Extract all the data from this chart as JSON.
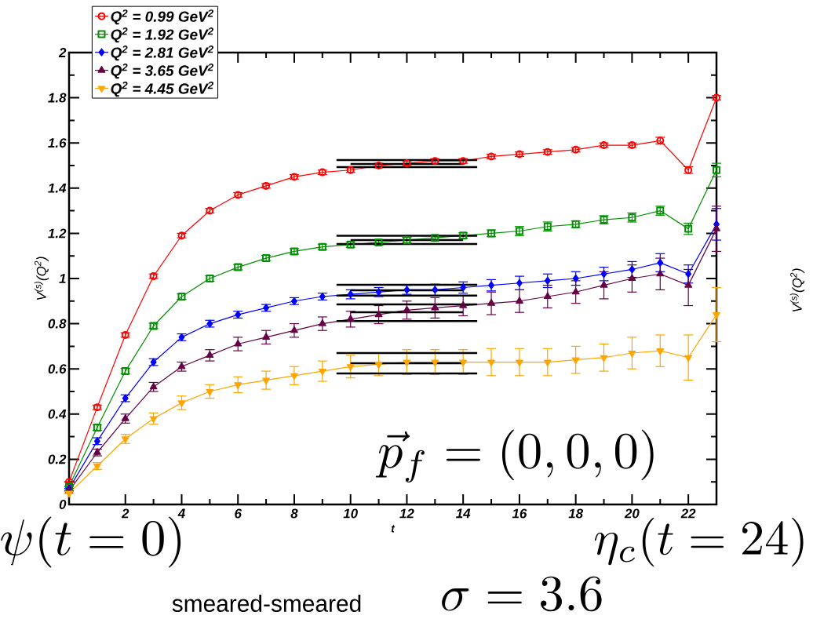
{
  "chart_data": {
    "type": "line",
    "xlabel": "t",
    "ylabel": "V$^{(s)}$(Q$^{2}$)",
    "xlim": [
      0,
      23
    ],
    "ylim": [
      0,
      2
    ],
    "xticks": [
      2,
      4,
      6,
      8,
      10,
      12,
      14,
      16,
      18,
      20,
      22
    ],
    "yticks": [
      0,
      0.2,
      0.4,
      0.6,
      0.8,
      1,
      1.2,
      1.4,
      1.6,
      1.8,
      2
    ],
    "legend": "top left",
    "x": [
      0,
      1,
      2,
      3,
      4,
      5,
      6,
      7,
      8,
      9,
      10,
      11,
      12,
      13,
      14,
      15,
      16,
      17,
      18,
      19,
      20,
      21,
      22,
      23
    ],
    "series": [
      {
        "name": "Q$^{2}$ = 0.99 GeV$^{2}$",
        "color": "#ff0000",
        "marker": "circle",
        "values": [
          0.1,
          0.43,
          0.75,
          1.01,
          1.19,
          1.3,
          1.37,
          1.41,
          1.45,
          1.47,
          1.48,
          1.5,
          1.51,
          1.52,
          1.52,
          1.54,
          1.55,
          1.56,
          1.57,
          1.59,
          1.59,
          1.61,
          1.48,
          1.8
        ],
        "errors": [
          null,
          0.01,
          0.01,
          0.01,
          0.01,
          0.01,
          0.01,
          0.01,
          0.01,
          0.01,
          0.01,
          0.01,
          0.01,
          0.01,
          0.01,
          0.01,
          0.01,
          0.01,
          0.01,
          0.01,
          0.01,
          0.015,
          0.015,
          0.01
        ]
      },
      {
        "name": "Q$^{2}$ = 1.92 GeV$^{2}$",
        "color": "#009000",
        "marker": "square",
        "values": [
          0.08,
          0.34,
          0.59,
          0.79,
          0.92,
          1.0,
          1.05,
          1.09,
          1.12,
          1.14,
          1.15,
          1.16,
          1.17,
          1.18,
          1.19,
          1.2,
          1.21,
          1.23,
          1.24,
          1.26,
          1.27,
          1.3,
          1.22,
          1.48
        ],
        "errors": [
          null,
          0.012,
          0.012,
          0.012,
          0.012,
          0.012,
          0.012,
          0.012,
          0.012,
          0.012,
          0.012,
          0.012,
          0.012,
          0.012,
          0.012,
          0.015,
          0.02,
          0.02,
          0.015,
          0.018,
          0.02,
          0.02,
          0.025,
          0.03
        ]
      },
      {
        "name": "Q$^{2}$ = 2.81 GeV$^{2}$",
        "color": "#0000ff",
        "marker": "diamond",
        "values": [
          0.07,
          0.28,
          0.47,
          0.63,
          0.74,
          0.8,
          0.84,
          0.87,
          0.9,
          0.92,
          0.93,
          0.94,
          0.95,
          0.95,
          0.96,
          0.97,
          0.98,
          0.99,
          1.0,
          1.02,
          1.04,
          1.07,
          1.02,
          1.24
        ],
        "errors": [
          null,
          0.015,
          0.015,
          0.015,
          0.015,
          0.015,
          0.015,
          0.015,
          0.015,
          0.015,
          0.02,
          0.02,
          0.02,
          0.025,
          0.025,
          0.025,
          0.03,
          0.03,
          0.03,
          0.03,
          0.035,
          0.04,
          0.04,
          0.07
        ]
      },
      {
        "name": "Q$^{2}$ = 3.65 GeV$^{2}$",
        "color": "#660044",
        "marker": "triangle",
        "values": [
          0.06,
          0.23,
          0.38,
          0.52,
          0.61,
          0.66,
          0.71,
          0.74,
          0.77,
          0.8,
          0.82,
          0.84,
          0.86,
          0.87,
          0.88,
          0.89,
          0.9,
          0.92,
          0.94,
          0.97,
          1.0,
          1.02,
          0.97,
          1.22
        ],
        "errors": [
          null,
          0.015,
          0.02,
          0.02,
          0.02,
          0.025,
          0.03,
          0.03,
          0.03,
          0.03,
          0.035,
          0.04,
          0.04,
          0.045,
          0.045,
          0.05,
          0.05,
          0.05,
          0.05,
          0.06,
          0.06,
          0.07,
          [
            0.88,
            1.04
          ],
          0.1
        ]
      },
      {
        "name": "Q$^{2}$ = 4.45 GeV$^{2}$",
        "color": "#ffa500",
        "marker": "triangle-down",
        "values": [
          0.05,
          0.17,
          0.29,
          0.38,
          0.45,
          0.5,
          0.53,
          0.55,
          0.57,
          0.59,
          0.61,
          0.62,
          0.63,
          0.63,
          0.63,
          0.63,
          0.63,
          0.63,
          0.64,
          0.65,
          0.67,
          0.68,
          0.65,
          0.84
        ],
        "errors": [
          null,
          0.015,
          0.02,
          0.025,
          0.03,
          0.03,
          0.035,
          0.04,
          0.04,
          0.045,
          0.05,
          0.05,
          0.055,
          0.055,
          0.055,
          0.06,
          0.06,
          0.06,
          0.06,
          0.06,
          0.07,
          0.07,
          0.1,
          0.12
        ]
      },
      {
        "type": "line",
        "color": "#000000",
        "marker": "none",
        "x": [
          9.5,
          14.5
        ],
        "values": [
          1.524,
          1.524
        ]
      },
      {
        "type": "line",
        "color": "#000000",
        "marker": "none",
        "x": [
          10,
          14
        ],
        "values": [
          1.507,
          1.507
        ]
      },
      {
        "type": "line",
        "color": "#000000",
        "marker": "none",
        "x": [
          9.5,
          14.5
        ],
        "values": [
          1.493,
          1.493
        ]
      },
      {
        "type": "line",
        "color": "#000000",
        "marker": "none",
        "x": [
          9.5,
          14.5
        ],
        "values": [
          1.189,
          1.189
        ]
      },
      {
        "type": "line",
        "color": "#000000",
        "marker": "none",
        "x": [
          10,
          14
        ],
        "values": [
          1.17,
          1.17
        ]
      },
      {
        "type": "line",
        "color": "#000000",
        "marker": "none",
        "x": [
          9.5,
          14.5
        ],
        "values": [
          1.153,
          1.153
        ]
      },
      {
        "type": "line",
        "color": "#000000",
        "marker": "none",
        "x": [
          9.5,
          14.5
        ],
        "values": [
          0.972,
          0.972
        ]
      },
      {
        "type": "line",
        "color": "#000000",
        "marker": "none",
        "x": [
          10,
          14
        ],
        "values": [
          0.948,
          0.948
        ]
      },
      {
        "type": "line",
        "color": "#000000",
        "marker": "none",
        "x": [
          9.5,
          14.5
        ],
        "values": [
          0.924,
          0.924
        ]
      },
      {
        "type": "line",
        "color": "#000000",
        "marker": "none",
        "x": [
          9.5,
          14.5
        ],
        "values": [
          0.885,
          0.885
        ]
      },
      {
        "type": "line",
        "color": "#000000",
        "marker": "none",
        "x": [
          10,
          14
        ],
        "values": [
          0.851,
          0.851
        ]
      },
      {
        "type": "line",
        "color": "#000000",
        "marker": "none",
        "x": [
          9.5,
          14.5
        ],
        "values": [
          0.812,
          0.812
        ]
      },
      {
        "type": "line",
        "color": "#000000",
        "marker": "none",
        "x": [
          9.5,
          14.5
        ],
        "values": [
          0.67,
          0.67
        ]
      },
      {
        "type": "line",
        "color": "#000000",
        "marker": "none",
        "x": [
          10,
          14
        ],
        "values": [
          0.625,
          0.625
        ]
      },
      {
        "type": "line",
        "color": "#000000",
        "marker": "none",
        "x": [
          9.5,
          14.5
        ],
        "values": [
          0.58,
          0.58
        ]
      }
    ],
    "annotations": [
      "\\vec{p}_f = (0,0,0)",
      "\\psi(t=0)",
      "\\eta_c(t=24)",
      "smeared-smeared",
      "\\sigma = 3.6",
      "V$^{(s)}$(Q$^{2}$)"
    ]
  }
}
